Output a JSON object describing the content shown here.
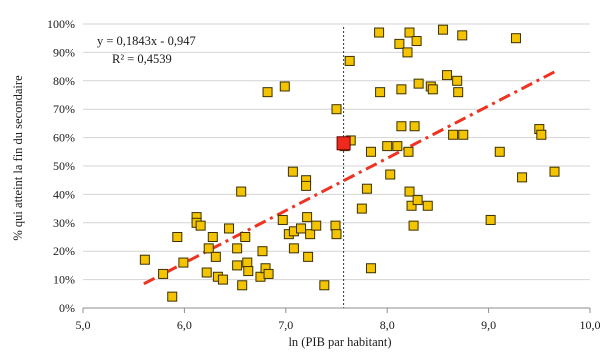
{
  "chart_data": {
    "type": "scatter",
    "title": "",
    "xlabel": "ln (PIB par habitant)",
    "ylabel": "% qui atteint la fin du secondaire",
    "xlim": [
      5.0,
      10.0
    ],
    "ylim": [
      0,
      100
    ],
    "x_ticks": [
      5,
      6,
      7,
      8,
      9,
      10
    ],
    "x_tick_labels": [
      "5,0",
      "6,0",
      "7,0",
      "8,0",
      "9,0",
      "10,0"
    ],
    "y_ticks": [
      0,
      10,
      20,
      30,
      40,
      50,
      60,
      70,
      80,
      90,
      100
    ],
    "y_tick_labels": [
      "0%",
      "10%",
      "20%",
      "30%",
      "40%",
      "50%",
      "60%",
      "70%",
      "80%",
      "90%",
      "100%"
    ],
    "grid": "horizontal",
    "colors": {
      "marker_fill": "#f5c400",
      "marker_stroke": "#3a3000",
      "highlight_fill": "#ee2a1f",
      "highlight_stroke": "#6b0000",
      "trendline": "#ee3322",
      "vline": "#333333",
      "grid": "#d4d4d4"
    },
    "annotation": {
      "equation": "y = 0,1843x - 0,947",
      "r2": "R² = 0,4539"
    },
    "trendline": {
      "slope": 0.1843,
      "intercept": -0.947,
      "x_range": [
        5.6,
        9.65
      ]
    },
    "vline_x": 7.57,
    "highlight_point": {
      "x": 7.57,
      "y": 58
    },
    "points": [
      {
        "x": 5.61,
        "y": 17
      },
      {
        "x": 5.79,
        "y": 12
      },
      {
        "x": 5.88,
        "y": 4
      },
      {
        "x": 5.93,
        "y": 25
      },
      {
        "x": 5.99,
        "y": 16
      },
      {
        "x": 6.12,
        "y": 32
      },
      {
        "x": 6.12,
        "y": 30
      },
      {
        "x": 6.16,
        "y": 29
      },
      {
        "x": 6.22,
        "y": 12.5
      },
      {
        "x": 6.24,
        "y": 21
      },
      {
        "x": 6.28,
        "y": 25
      },
      {
        "x": 6.31,
        "y": 18
      },
      {
        "x": 6.33,
        "y": 11
      },
      {
        "x": 6.38,
        "y": 10
      },
      {
        "x": 6.44,
        "y": 28
      },
      {
        "x": 6.52,
        "y": 21
      },
      {
        "x": 6.52,
        "y": 15
      },
      {
        "x": 6.56,
        "y": 41
      },
      {
        "x": 6.57,
        "y": 8
      },
      {
        "x": 6.6,
        "y": 25
      },
      {
        "x": 6.62,
        "y": 16
      },
      {
        "x": 6.63,
        "y": 13
      },
      {
        "x": 6.75,
        "y": 11
      },
      {
        "x": 6.77,
        "y": 20
      },
      {
        "x": 6.8,
        "y": 14
      },
      {
        "x": 6.82,
        "y": 76
      },
      {
        "x": 6.83,
        "y": 12
      },
      {
        "x": 6.97,
        "y": 31
      },
      {
        "x": 6.99,
        "y": 78
      },
      {
        "x": 7.03,
        "y": 26
      },
      {
        "x": 7.07,
        "y": 48
      },
      {
        "x": 7.08,
        "y": 21
      },
      {
        "x": 7.08,
        "y": 27
      },
      {
        "x": 7.15,
        "y": 28
      },
      {
        "x": 7.2,
        "y": 45
      },
      {
        "x": 7.2,
        "y": 43
      },
      {
        "x": 7.21,
        "y": 32
      },
      {
        "x": 7.22,
        "y": 18
      },
      {
        "x": 7.24,
        "y": 26
      },
      {
        "x": 7.3,
        "y": 29
      },
      {
        "x": 7.38,
        "y": 8
      },
      {
        "x": 7.49,
        "y": 29
      },
      {
        "x": 7.5,
        "y": 70
      },
      {
        "x": 7.5,
        "y": 26
      },
      {
        "x": 7.58,
        "y": 57
      },
      {
        "x": 7.63,
        "y": 87
      },
      {
        "x": 7.64,
        "y": 59
      },
      {
        "x": 7.75,
        "y": 35
      },
      {
        "x": 7.8,
        "y": 42
      },
      {
        "x": 7.84,
        "y": 14
      },
      {
        "x": 7.84,
        "y": 55
      },
      {
        "x": 7.92,
        "y": 97
      },
      {
        "x": 7.93,
        "y": 76
      },
      {
        "x": 8.0,
        "y": 57
      },
      {
        "x": 8.03,
        "y": 47
      },
      {
        "x": 8.1,
        "y": 57
      },
      {
        "x": 8.12,
        "y": 93
      },
      {
        "x": 8.14,
        "y": 64
      },
      {
        "x": 8.14,
        "y": 77
      },
      {
        "x": 8.2,
        "y": 90
      },
      {
        "x": 8.21,
        "y": 55
      },
      {
        "x": 8.22,
        "y": 41
      },
      {
        "x": 8.22,
        "y": 97
      },
      {
        "x": 8.24,
        "y": 36
      },
      {
        "x": 8.26,
        "y": 29
      },
      {
        "x": 8.27,
        "y": 64
      },
      {
        "x": 8.29,
        "y": 94
      },
      {
        "x": 8.3,
        "y": 38
      },
      {
        "x": 8.31,
        "y": 79
      },
      {
        "x": 8.4,
        "y": 36
      },
      {
        "x": 8.43,
        "y": 78
      },
      {
        "x": 8.45,
        "y": 77
      },
      {
        "x": 8.55,
        "y": 98
      },
      {
        "x": 8.59,
        "y": 82
      },
      {
        "x": 8.65,
        "y": 61
      },
      {
        "x": 8.69,
        "y": 80
      },
      {
        "x": 8.7,
        "y": 76
      },
      {
        "x": 8.74,
        "y": 96
      },
      {
        "x": 8.75,
        "y": 61
      },
      {
        "x": 9.02,
        "y": 31
      },
      {
        "x": 9.11,
        "y": 55
      },
      {
        "x": 9.27,
        "y": 95
      },
      {
        "x": 9.33,
        "y": 46
      },
      {
        "x": 9.5,
        "y": 63
      },
      {
        "x": 9.52,
        "y": 61
      },
      {
        "x": 9.65,
        "y": 48
      }
    ]
  }
}
